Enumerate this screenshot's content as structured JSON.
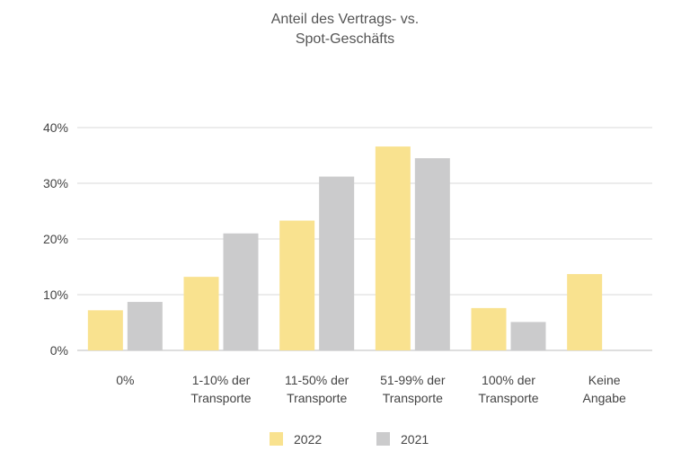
{
  "chart_data": {
    "type": "bar",
    "title_lines": [
      "Anteil des Vertrags- vs.",
      "Spot-Geschäfts"
    ],
    "categories": [
      [
        "0%"
      ],
      [
        "1-10% der",
        "Transporte"
      ],
      [
        "11-50% der",
        "Transporte"
      ],
      [
        "51-99% der",
        "Transporte"
      ],
      [
        "100% der",
        "Transporte"
      ],
      [
        "Keine",
        "Angabe"
      ]
    ],
    "series": [
      {
        "name": "2022",
        "color": "#f9e28f",
        "values": [
          7.2,
          13.2,
          23.3,
          36.6,
          7.6,
          13.7
        ]
      },
      {
        "name": "2021",
        "color": "#cbcbcc",
        "values": [
          8.7,
          21.0,
          31.2,
          34.5,
          5.1,
          null
        ]
      }
    ],
    "ylim": [
      0,
      40
    ],
    "yticks": [
      0,
      10,
      20,
      30,
      40
    ],
    "ytick_labels": [
      "0%",
      "10%",
      "20%",
      "30%",
      "40%"
    ],
    "grid": true,
    "legend_position": "bottom"
  }
}
